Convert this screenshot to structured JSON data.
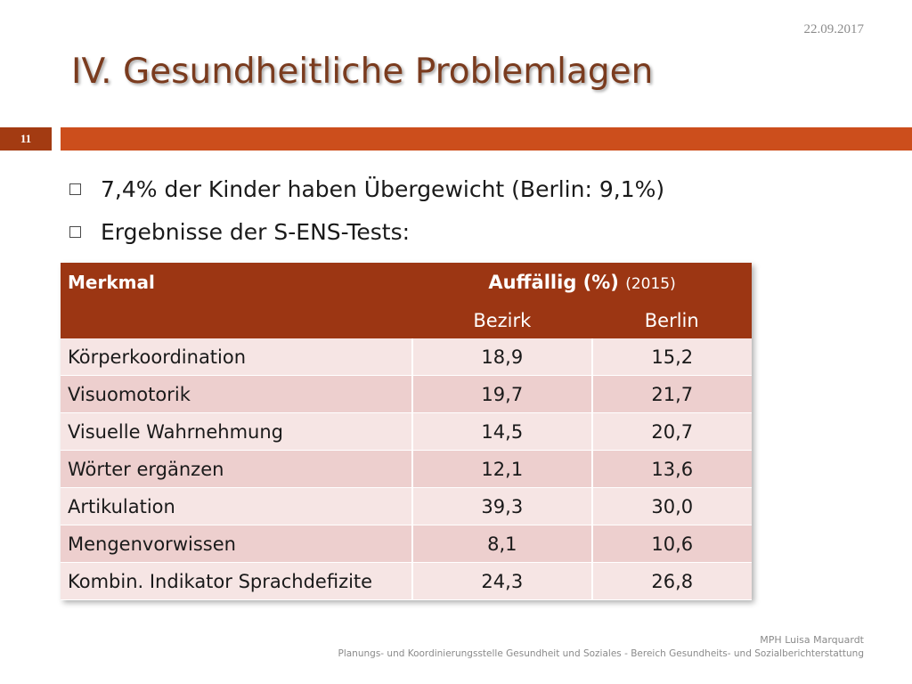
{
  "slide": {
    "date": "22.09.2017",
    "title": "IV. Gesundheitliche Problemlagen",
    "number": "11",
    "accent_color": "#cc4e1c",
    "number_color": "#a33b12"
  },
  "bullets": [
    "7,4% der Kinder haben Übergewicht (Berlin: 9,1%)",
    "Ergebnisse der S-ENS-Tests:"
  ],
  "table": {
    "header": {
      "col1": "Merkmal",
      "group": "Auffällig (%)",
      "group_year": "(2015)",
      "sub1": "Bezirk",
      "sub2": "Berlin"
    },
    "header_color": "#9c3613",
    "rows": [
      {
        "merkmal": "Körperkoordination",
        "bezirk": "18,9",
        "berlin": "15,2"
      },
      {
        "merkmal": "Visuomotorik",
        "bezirk": "19,7",
        "berlin": "21,7"
      },
      {
        "merkmal": "Visuelle Wahrnehmung",
        "bezirk": "14,5",
        "berlin": "20,7"
      },
      {
        "merkmal": "Wörter ergänzen",
        "bezirk": "12,1",
        "berlin": "13,6"
      },
      {
        "merkmal": "Artikulation",
        "bezirk": "39,3",
        "berlin": "30,0"
      },
      {
        "merkmal": "Mengenvorwissen",
        "bezirk": "8,1",
        "berlin": "10,6"
      },
      {
        "merkmal": "Kombin. Indikator Sprachdefizite",
        "bezirk": "24,3",
        "berlin": "26,8"
      }
    ]
  },
  "footer": {
    "name": "MPH Luisa Marquardt",
    "org": "Planungs- und Koordinierungsstelle Gesundheit und Soziales  - Bereich Gesundheits- und Sozialberichterstattung"
  }
}
